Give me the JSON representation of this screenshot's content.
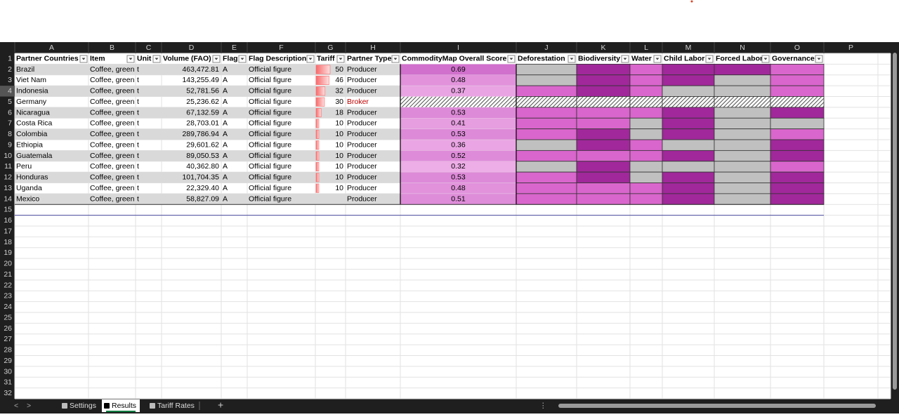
{
  "column_letters": [
    "A",
    "B",
    "C",
    "D",
    "E",
    "F",
    "G",
    "H",
    "I",
    "J",
    "K",
    "L",
    "M",
    "N",
    "O",
    "P"
  ],
  "row_numbers": [
    1,
    2,
    3,
    4,
    5,
    6,
    7,
    8,
    9,
    10,
    11,
    12,
    13,
    14,
    15,
    16,
    17,
    18,
    19,
    20,
    21,
    22,
    23,
    24,
    25,
    26,
    27,
    28,
    29,
    30,
    31,
    32
  ],
  "table": {
    "header": [
      "Partner Countries",
      "Item",
      "Unit",
      "Volume (FAO)",
      "Flag",
      "Flag Description",
      "Tariff",
      "Partner Type",
      "CommodityMap Overall Score",
      "Deforestation",
      "Biodiversity",
      "Water",
      "Child Labor",
      "Forced Labor",
      "Governance"
    ],
    "rows": [
      [
        "Brazil",
        "Coffee, green",
        "t",
        "463,472.81",
        "A",
        "Official figure",
        50,
        "Producer",
        0.69
      ],
      [
        "Viet Nam",
        "Coffee, green",
        "t",
        "143,255.49",
        "A",
        "Official figure",
        46,
        "Producer",
        0.48
      ],
      [
        "Indonesia",
        "Coffee, green",
        "t",
        "52,781.56",
        "A",
        "Official figure",
        32,
        "Producer",
        0.37
      ],
      [
        "Germany",
        "Coffee, green",
        "t",
        "25,236.62",
        "A",
        "Official figure",
        30,
        "Broker",
        null
      ],
      [
        "Nicaragua",
        "Coffee, green",
        "t",
        "67,132.59",
        "A",
        "Official figure",
        18,
        "Producer",
        0.53
      ],
      [
        "Costa Rica",
        "Coffee, green",
        "t",
        "28,703.01",
        "A",
        "Official figure",
        10,
        "Producer",
        0.41
      ],
      [
        "Colombia",
        "Coffee, green",
        "t",
        "289,786.94",
        "A",
        "Official figure",
        10,
        "Producer",
        0.53
      ],
      [
        "Ethiopia",
        "Coffee, green",
        "t",
        "29,601.62",
        "A",
        "Official figure",
        10,
        "Producer",
        0.36
      ],
      [
        "Guatemala",
        "Coffee, green",
        "t",
        "89,050.53",
        "A",
        "Official figure",
        10,
        "Producer",
        0.52
      ],
      [
        "Peru",
        "Coffee, green",
        "t",
        "40,362.80",
        "A",
        "Official figure",
        10,
        "Producer",
        0.32
      ],
      [
        "Honduras",
        "Coffee, green",
        "t",
        "101,704.35",
        "A",
        "Official figure",
        10,
        "Producer",
        0.53
      ],
      [
        "Uganda",
        "Coffee, green",
        "t",
        "22,329.40",
        "A",
        "Official figure",
        10,
        "Producer",
        0.48
      ],
      [
        "Mexico",
        "Coffee, green",
        "t",
        "58,827.09",
        "A",
        "Official figure",
        null,
        "Producer",
        0.51
      ]
    ],
    "partner_type_colors": [
      "#000000",
      "#000000",
      "#000000",
      "#c00000",
      "#000000",
      "#000000",
      "#000000",
      "#000000",
      "#000000",
      "#000000",
      "#000000",
      "#000000",
      "#000000"
    ],
    "risk_colors": [
      [
        "#c0c0c0",
        "#a0289a",
        "#d966cc",
        "#a0289a",
        "#a0289a",
        "#d966cc"
      ],
      [
        "#c0c0c0",
        "#a0289a",
        "#d966cc",
        "#a0289a",
        "#c0c0c0",
        "#d966cc"
      ],
      [
        "#d966cc",
        "#a0289a",
        "#d966cc",
        "#c0c0c0",
        "#c0c0c0",
        "#d966cc"
      ],
      [
        null,
        null,
        null,
        null,
        null,
        null
      ],
      [
        "#d966cc",
        "#d966cc",
        "#d966cc",
        "#a0289a",
        "#c0c0c0",
        "#a0289a"
      ],
      [
        "#d966cc",
        "#d966cc",
        "#c0c0c0",
        "#a0289a",
        "#c0c0c0",
        "#c0c0c0"
      ],
      [
        "#d966cc",
        "#a0289a",
        "#c0c0c0",
        "#a0289a",
        "#c0c0c0",
        "#d966cc"
      ],
      [
        "#c0c0c0",
        "#a0289a",
        "#d966cc",
        "#c0c0c0",
        "#c0c0c0",
        "#a0289a"
      ],
      [
        "#d966cc",
        "#d966cc",
        "#d966cc",
        "#a0289a",
        "#c0c0c0",
        "#a0289a"
      ],
      [
        "#c0c0c0",
        "#a0289a",
        "#c0c0c0",
        "#c0c0c0",
        "#c0c0c0",
        "#d966cc"
      ],
      [
        "#d966cc",
        "#a0289a",
        "#c0c0c0",
        "#a0289a",
        "#c0c0c0",
        "#a0289a"
      ],
      [
        "#d966cc",
        "#d966cc",
        "#d966cc",
        "#a0289a",
        "#c0c0c0",
        "#a0289a"
      ],
      [
        "#d966cc",
        "#d966cc",
        "#d966cc",
        "#a0289a",
        "#c0c0c0",
        "#a0289a"
      ]
    ]
  },
  "tabs": [
    "Settings",
    "Results",
    "Tariff Rates"
  ],
  "active_tab": 1
}
